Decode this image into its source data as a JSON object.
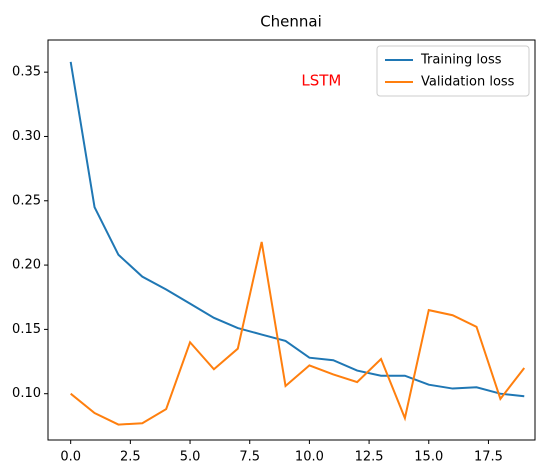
{
  "chart_data": {
    "type": "line",
    "title": "Chennai",
    "annotation": "LSTM",
    "annotation_color": "#ff0000",
    "annotation_x": 10.5,
    "annotation_y": 0.343,
    "x": [
      0,
      1,
      2,
      3,
      4,
      5,
      6,
      7,
      8,
      9,
      10,
      11,
      12,
      13,
      14,
      15,
      16,
      17,
      18,
      19
    ],
    "series": [
      {
        "name": "Training loss",
        "color": "#1f77b4",
        "values": [
          0.358,
          0.245,
          0.208,
          0.191,
          0.181,
          0.17,
          0.159,
          0.151,
          0.146,
          0.141,
          0.128,
          0.126,
          0.118,
          0.114,
          0.114,
          0.107,
          0.104,
          0.105,
          0.1,
          0.098
        ]
      },
      {
        "name": "Validation loss",
        "color": "#ff7f0e",
        "values": [
          0.1,
          0.085,
          0.076,
          0.077,
          0.088,
          0.14,
          0.119,
          0.135,
          0.218,
          0.106,
          0.122,
          0.115,
          0.109,
          0.127,
          0.081,
          0.165,
          0.161,
          0.152,
          0.096,
          0.12
        ]
      }
    ],
    "xlim": [
      -0.95,
      19.45
    ],
    "ylim": [
      0.064,
      0.375
    ],
    "xticks": [
      {
        "value": 0,
        "label": "0.0"
      },
      2.5,
      {
        "value": 5,
        "label": "5.0"
      },
      7.5,
      {
        "value": 10,
        "label": "10.0"
      },
      12.5,
      {
        "value": 15,
        "label": "15.0"
      },
      17.5
    ],
    "yticks": [
      {
        "value": 0.1,
        "label": "0.10"
      },
      0.15,
      {
        "value": 0.2,
        "label": "0.20"
      },
      0.25,
      {
        "value": 0.3,
        "label": "0.30"
      },
      0.35
    ],
    "legend": "upper right"
  }
}
